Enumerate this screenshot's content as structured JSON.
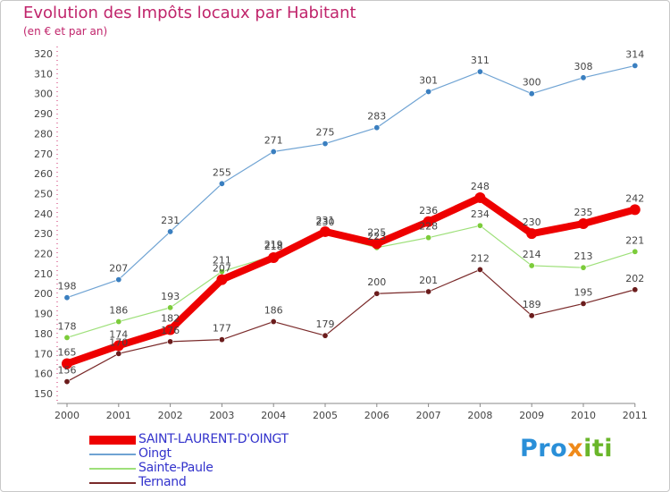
{
  "header": {
    "title": "Evolution des Impôts locaux par Habitant",
    "subtitle": "(en € et par an)"
  },
  "logo": {
    "text": "Proxiti",
    "colors": [
      "#2a8fd8",
      "#ef8a1a",
      "#6ab62a"
    ]
  },
  "chart_data": {
    "type": "line",
    "title": "Evolution des Impôts locaux par Habitant",
    "subtitle": "(en € et par an)",
    "xlabel": "",
    "ylabel": "",
    "categories": [
      "2000",
      "2001",
      "2002",
      "2003",
      "2004",
      "2005",
      "2006",
      "2007",
      "2008",
      "2009",
      "2010",
      "2011"
    ],
    "ylim": [
      150,
      320
    ],
    "yticks": [
      150,
      160,
      170,
      180,
      190,
      200,
      210,
      220,
      230,
      240,
      250,
      260,
      270,
      280,
      290,
      300,
      310,
      320
    ],
    "grid": false,
    "legend_position": "bottom-left",
    "series": [
      {
        "name": "Ternand",
        "color": "#7a2a2a",
        "marker": "#6b1c1c",
        "values": [
          156,
          170,
          176,
          177,
          186,
          179,
          200,
          201,
          212,
          189,
          195,
          202
        ]
      },
      {
        "name": "Sainte-Paule",
        "color": "#9ee07a",
        "marker": "#7ccc3a",
        "values": [
          178,
          186,
          193,
          211,
          219,
          230,
          223,
          228,
          234,
          214,
          213,
          221
        ]
      },
      {
        "name": "Oingt",
        "color": "#6fa3d3",
        "marker": "#3a7fc0",
        "values": [
          198,
          207,
          231,
          255,
          271,
          275,
          283,
          301,
          311,
          300,
          308,
          314
        ]
      },
      {
        "name": "SAINT-LAURENT-D'OINGT",
        "color": "#ee0000",
        "marker": "#ee0000",
        "values": [
          165,
          174,
          182,
          207,
          218,
          231,
          225,
          236,
          248,
          230,
          235,
          242
        ]
      }
    ],
    "legend_order": [
      "SAINT-LAURENT-D'OINGT",
      "Oingt",
      "Sainte-Paule",
      "Ternand"
    ]
  }
}
